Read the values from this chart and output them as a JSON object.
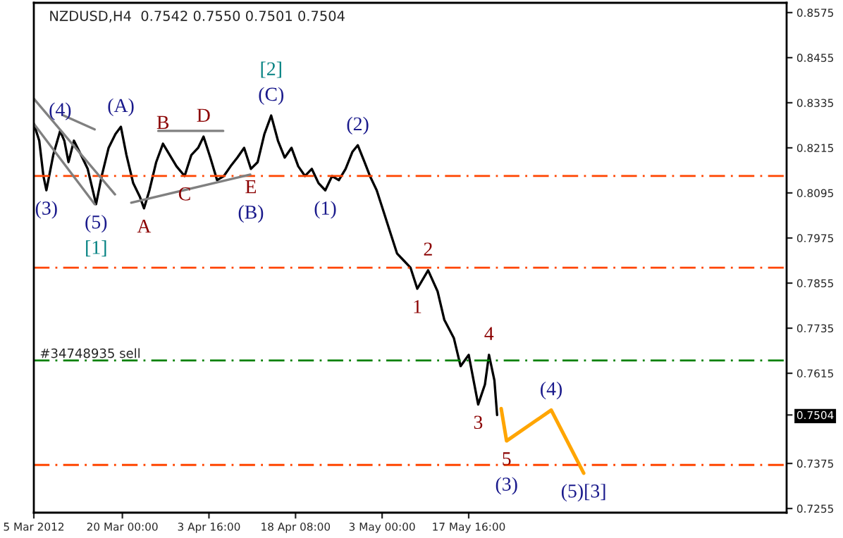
{
  "chart_data": {
    "type": "line",
    "title": "NZDUSD,H4  0.7542 0.7550 0.7501 0.7504",
    "series": [
      {
        "color": "#000000",
        "x": [
          "2012-03-05T00:00",
          "2012-03-05T22:00",
          "2012-03-06T15:00",
          "2012-03-07T03:00",
          "2012-03-08T07:00",
          "2012-03-09T11:00",
          "2012-03-10T04:00",
          "2012-03-10T21:00",
          "2012-03-11T19:00",
          "2012-03-13T05:00",
          "2012-03-14T03:00",
          "2012-03-15T13:00",
          "2012-03-16T12:00",
          "2012-03-17T16:00",
          "2012-03-18T20:00",
          "2012-03-19T18:00",
          "2012-03-20T16:30",
          "2012-03-21T20:00",
          "2012-03-22T23:30",
          "2012-03-23T16:00",
          "2012-03-24T14:00",
          "2012-03-25T17:30",
          "2012-03-26T21:00",
          "2012-03-28T00:30",
          "2012-03-29T04:00",
          "2012-03-30T13:00",
          "2012-03-31T16:30",
          "2012-04-01T20:00",
          "2012-04-02T18:00",
          "2012-04-03T21:30",
          "2012-04-05T01:00",
          "2012-04-06T04:30",
          "2012-04-07T08:00",
          "2012-04-08T11:30",
          "2012-04-09T15:00",
          "2012-04-10T18:30",
          "2012-04-11T22:00",
          "2012-04-13T01:30",
          "2012-04-14T05:00",
          "2012-04-15T08:30",
          "2012-04-16T12:00",
          "2012-04-17T15:30",
          "2012-04-18T19:00",
          "2012-04-19T22:30",
          "2012-04-21T02:00",
          "2012-04-22T05:30",
          "2012-04-23T09:00",
          "2012-04-24T12:30",
          "2012-04-25T16:00",
          "2012-04-26T19:30",
          "2012-04-27T23:00",
          "2012-04-28T21:00",
          "2012-04-30T00:30",
          "2012-04-30T22:30",
          "2012-05-02T02:00",
          "2012-05-03T05:30",
          "2012-05-04T09:00",
          "2012-05-05T12:30",
          "2012-05-06T16:00",
          "2012-05-07T19:30",
          "2012-05-08T23:00",
          "2012-05-10T19:00",
          "2012-05-12T09:30",
          "2012-05-13T13:00",
          "2012-05-15T03:30",
          "2012-05-16T07:00",
          "2012-05-17T16:00",
          "2012-05-19T06:30",
          "2012-05-20T10:00",
          "2012-05-21T02:30",
          "2012-05-22T00:30",
          "2012-05-22T11:30"
        ],
        "values": [
          0.8279,
          0.8234,
          0.814,
          0.8102,
          0.8196,
          0.826,
          0.8234,
          0.8177,
          0.8234,
          0.8189,
          0.8159,
          0.8065,
          0.814,
          0.8215,
          0.8252,
          0.8271,
          0.8196,
          0.8121,
          0.8084,
          0.8054,
          0.8102,
          0.8177,
          0.8226,
          0.8196,
          0.8166,
          0.814,
          0.8196,
          0.8215,
          0.8245,
          0.8189,
          0.8129,
          0.814,
          0.8166,
          0.8189,
          0.8215,
          0.8159,
          0.8177,
          0.8252,
          0.8301,
          0.8234,
          0.8189,
          0.8215,
          0.8166,
          0.814,
          0.8159,
          0.8121,
          0.8102,
          0.814,
          0.8129,
          0.8159,
          0.8204,
          0.8222,
          0.8177,
          0.814,
          0.8102,
          0.8046,
          0.799,
          0.7934,
          0.7915,
          0.7896,
          0.784,
          0.7889,
          0.7833,
          0.7757,
          0.7709,
          0.7634,
          0.7664,
          0.7532,
          0.7585,
          0.7664,
          0.7596,
          0.7504
        ]
      },
      {
        "color": "#ffa500",
        "x": [
          "2012-05-23T04:00",
          "2012-05-24T02:00",
          "2012-05-31T15:30",
          "2012-06-06T03:30"
        ],
        "values": [
          0.7521,
          0.7435,
          0.7517,
          0.7349
        ]
      }
    ],
    "xlim": [
      "2012-03-05T00:00",
      "2012-07-10T12:30"
    ],
    "ylim": [
      0.7244,
      0.8601
    ],
    "xticks": [
      {
        "value": "2012-03-05T00:00",
        "label": "5 Mar 2012"
      },
      {
        "value": "2012-03-20T00:00",
        "label": "20 Mar 00:00"
      },
      {
        "value": "2012-04-03T16:00",
        "label": "3 Apr 16:00"
      },
      {
        "value": "2012-04-18T08:00",
        "label": "18 Apr 08:00"
      },
      {
        "value": "2012-05-03T00:00",
        "label": "3 May 00:00"
      },
      {
        "value": "2012-05-17T16:00",
        "label": "17 May 16:00"
      }
    ],
    "yticks": [
      0.8575,
      0.8455,
      0.8335,
      0.8215,
      0.8095,
      0.7975,
      0.7855,
      0.7735,
      0.7615,
      0.7504,
      0.7375,
      0.7255
    ],
    "ref_lines": [
      {
        "axis": "y",
        "value": 0.814,
        "color": "#ff4500",
        "line_style": "dashdot"
      },
      {
        "axis": "y",
        "value": 0.7896,
        "color": "#ff4500",
        "line_style": "dashdot"
      },
      {
        "axis": "y",
        "value": 0.7649,
        "color": "#008000",
        "line_style": "dashdot",
        "label": "#34748935 sell"
      },
      {
        "axis": "y",
        "value": 0.7371,
        "color": "#ff4500",
        "line_style": "dashdot"
      }
    ],
    "annotations": [
      {
        "text": "(3)",
        "x": "2012-03-07T03:00",
        "y": 0.8102
      },
      {
        "text": "(4)",
        "x": "2012-03-09T11:00",
        "y": 0.826
      },
      {
        "text": "(5)",
        "x": "2012-03-15T13:00",
        "y": 0.8065
      },
      {
        "text": "[1]",
        "x": "2012-03-15T13:00",
        "y": 0.8065
      },
      {
        "text": "(A)",
        "x": "2012-03-19T18:00",
        "y": 0.8271
      },
      {
        "text": "A",
        "x": "2012-03-23T16:00",
        "y": 0.8054
      },
      {
        "text": "B",
        "x": "2012-03-26T21:00",
        "y": 0.8226
      },
      {
        "text": "C",
        "x": "2012-03-30T13:00",
        "y": 0.814
      },
      {
        "text": "D",
        "x": "2012-04-02T18:00",
        "y": 0.8245
      },
      {
        "text": "E",
        "x": "2012-04-10T18:30",
        "y": 0.8159
      },
      {
        "text": "(B)",
        "x": "2012-04-10T18:30",
        "y": 0.8159
      },
      {
        "text": "(C)",
        "x": "2012-04-14T05:00",
        "y": 0.8301
      },
      {
        "text": "[2]",
        "x": "2012-04-14T05:00",
        "y": 0.8301
      },
      {
        "text": "(1)",
        "x": "2012-04-23T09:00",
        "y": 0.8102
      },
      {
        "text": "(2)",
        "x": "2012-04-28T21:00",
        "y": 0.8222
      },
      {
        "text": "2",
        "x": "2012-05-10T19:00",
        "y": 0.7889
      },
      {
        "text": "1",
        "x": "2012-05-08T23:00",
        "y": 0.784
      },
      {
        "text": "4",
        "x": "2012-05-21T02:30",
        "y": 0.7664
      },
      {
        "text": "3",
        "x": "2012-05-19T06:30",
        "y": 0.7532
      },
      {
        "text": "5",
        "x": "2012-05-24T02:00",
        "y": 0.7435
      },
      {
        "text": "(3)",
        "x": "2012-05-24T02:00",
        "y": 0.7435
      },
      {
        "text": "(4)",
        "x": "2012-05-31T15:30",
        "y": 0.7517
      },
      {
        "text": "(5)[3]",
        "x": "2012-06-06T03:30",
        "y": 0.7349
      }
    ]
  }
}
